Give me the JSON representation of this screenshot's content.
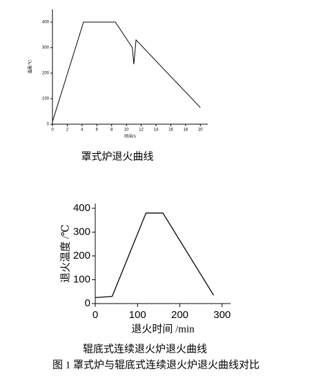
{
  "chart_data": [
    {
      "type": "line",
      "caption": "罩式炉退火曲线",
      "xlabel": "时间/h",
      "ylabel": "温度/℃",
      "x": [
        0,
        4.2,
        8.5,
        10.8,
        11,
        11.3,
        20
      ],
      "values": [
        10,
        400,
        400,
        300,
        235,
        330,
        65
      ],
      "color": "#000000",
      "xlim": [
        0,
        21
      ],
      "ylim": [
        0,
        450
      ],
      "xticks": [
        0,
        2,
        4,
        6,
        8,
        10,
        12,
        14,
        16,
        18,
        20
      ],
      "yticks": [
        0,
        100,
        200,
        300,
        400
      ]
    },
    {
      "type": "line",
      "caption": "辊底式连续退火炉退火曲线",
      "xlabel": "退火时间 /min",
      "ylabel": "退火温度 /℃",
      "x": [
        0,
        40,
        120,
        160,
        280
      ],
      "values": [
        25,
        30,
        380,
        380,
        35
      ],
      "color": "#000000",
      "xlim": [
        0,
        320
      ],
      "ylim": [
        0,
        420
      ],
      "xticks": [
        0,
        100,
        200,
        300
      ],
      "yticks": [
        0,
        100,
        200,
        300,
        400
      ]
    }
  ],
  "figure_caption": "图 1  罩式炉与辊底式连续退火炉退火曲线对比"
}
